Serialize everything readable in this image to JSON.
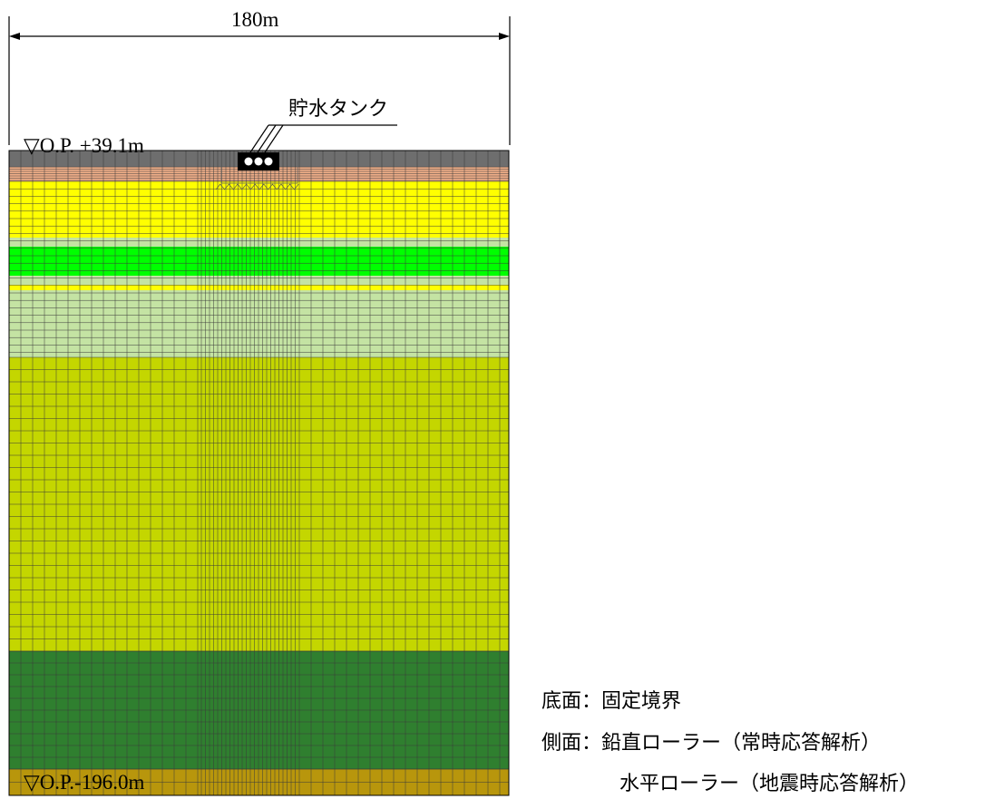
{
  "dimension": {
    "label": "180m"
  },
  "tank": {
    "label": "貯水タンク"
  },
  "levels": {
    "top": "▽O.P. +39.1m",
    "bottom": "▽O.P.-196.0m"
  },
  "notes": {
    "bottom_label": "底面：固定境界",
    "side_label": "側面：鉛直ローラー（常時応答解析）",
    "side_label_2": "水平ローラー（地震時応答解析）"
  },
  "colors": {
    "fill_soil": "#7f7f7f",
    "backfill": "#f2b089",
    "sand_layer_yellow": "#ffff00",
    "light_green_layer": "#c4e3a3",
    "bright_green_layer": "#00ff00",
    "yellow_green_layer": "#c4d600",
    "dark_green_layer": "#2f7f2f",
    "base_layer": "#b8960c",
    "tank": "#000000"
  }
}
